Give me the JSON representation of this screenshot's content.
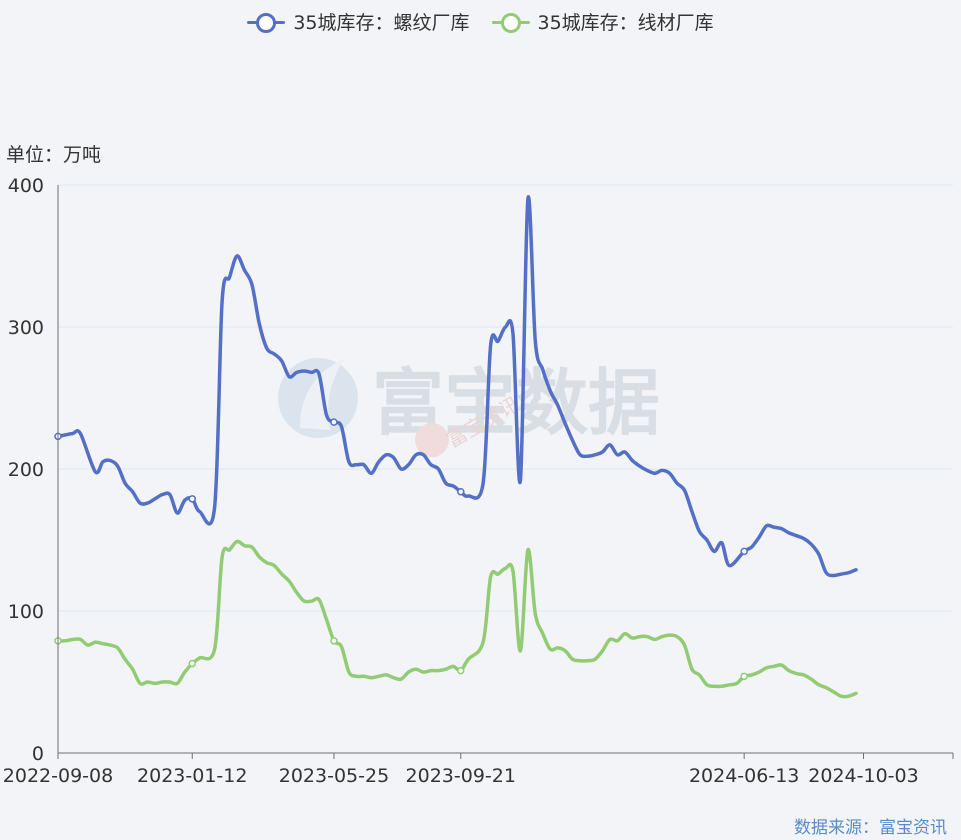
{
  "legend": {
    "rebar_label": "35城库存：螺纹厂库",
    "wire_label": "35城库存：线材厂库"
  },
  "unit_label": "单位：万吨",
  "source_label": "数据来源：富宝资讯",
  "watermark": {
    "main_text": "富宝数据",
    "sub_text": "富宝资讯"
  },
  "colors": {
    "rebar": "#5470c6",
    "wire": "#91cc75",
    "axis": "#6e7079",
    "grid": "#e0e6f1",
    "background": "#f2f4f7"
  },
  "chart_data": {
    "type": "line",
    "ylim": [
      0,
      400
    ],
    "yticks": [
      0,
      100,
      200,
      300,
      400
    ],
    "xlim": [
      "2022-09-08",
      "2024-12-26"
    ],
    "xticks": [
      "2022-09-08",
      "2023-01-12",
      "2023-05-25",
      "2023-09-21",
      "2024-06-13",
      "2024-10-03"
    ],
    "grid": true,
    "legend_position": "top-center",
    "series": [
      {
        "name": "35城库存：螺纹厂库",
        "color": "#5470c6",
        "points": [
          [
            "2022-09-08",
            223
          ],
          [
            "2022-09-15",
            224
          ],
          [
            "2022-09-22",
            225
          ],
          [
            "2022-09-29",
            225
          ],
          [
            "2022-10-13",
            198
          ],
          [
            "2022-10-20",
            205
          ],
          [
            "2022-10-27",
            206
          ],
          [
            "2022-11-03",
            202
          ],
          [
            "2022-11-10",
            190
          ],
          [
            "2022-11-17",
            184
          ],
          [
            "2022-11-24",
            176
          ],
          [
            "2022-12-01",
            176
          ],
          [
            "2022-12-08",
            179
          ],
          [
            "2022-12-15",
            182
          ],
          [
            "2022-12-22",
            182
          ],
          [
            "2022-12-29",
            169
          ],
          [
            "2023-01-05",
            178
          ],
          [
            "2023-01-12",
            179
          ],
          [
            "2023-01-19",
            170
          ],
          [
            "2023-02-02",
            173
          ],
          [
            "2023-02-09",
            318
          ],
          [
            "2023-02-16",
            335
          ],
          [
            "2023-02-23",
            350
          ],
          [
            "2023-03-02",
            340
          ],
          [
            "2023-03-09",
            330
          ],
          [
            "2023-03-16",
            302
          ],
          [
            "2023-03-23",
            285
          ],
          [
            "2023-03-30",
            281
          ],
          [
            "2023-04-06",
            276
          ],
          [
            "2023-04-13",
            265
          ],
          [
            "2023-04-20",
            268
          ],
          [
            "2023-04-27",
            269
          ],
          [
            "2023-05-04",
            268
          ],
          [
            "2023-05-11",
            267
          ],
          [
            "2023-05-18",
            238
          ],
          [
            "2023-05-25",
            233
          ],
          [
            "2023-06-01",
            230
          ],
          [
            "2023-06-08",
            205
          ],
          [
            "2023-06-15",
            203
          ],
          [
            "2023-06-22",
            203
          ],
          [
            "2023-06-29",
            197
          ],
          [
            "2023-07-06",
            205
          ],
          [
            "2023-07-13",
            210
          ],
          [
            "2023-07-20",
            208
          ],
          [
            "2023-07-27",
            200
          ],
          [
            "2023-08-03",
            203
          ],
          [
            "2023-08-10",
            210
          ],
          [
            "2023-08-17",
            210
          ],
          [
            "2023-08-24",
            203
          ],
          [
            "2023-08-31",
            200
          ],
          [
            "2023-09-07",
            190
          ],
          [
            "2023-09-14",
            188
          ],
          [
            "2023-09-21",
            184
          ],
          [
            "2023-09-28",
            181
          ],
          [
            "2023-10-12",
            190
          ],
          [
            "2023-10-19",
            287
          ],
          [
            "2023-10-26",
            290
          ],
          [
            "2023-11-02",
            300
          ],
          [
            "2023-11-09",
            295
          ],
          [
            "2023-11-16",
            192
          ],
          [
            "2023-11-23",
            390
          ],
          [
            "2023-11-30",
            290
          ],
          [
            "2023-12-07",
            270
          ],
          [
            "2023-12-14",
            255
          ],
          [
            "2023-12-21",
            245
          ],
          [
            "2023-12-28",
            232
          ],
          [
            "2024-01-04",
            220
          ],
          [
            "2024-01-11",
            210
          ],
          [
            "2024-01-18",
            209
          ],
          [
            "2024-01-25",
            210
          ],
          [
            "2024-02-01",
            212
          ],
          [
            "2024-02-08",
            217
          ],
          [
            "2024-02-15",
            210
          ],
          [
            "2024-02-22",
            212
          ],
          [
            "2024-02-29",
            206
          ],
          [
            "2024-03-07",
            202
          ],
          [
            "2024-03-14",
            199
          ],
          [
            "2024-03-21",
            197
          ],
          [
            "2024-03-28",
            199
          ],
          [
            "2024-04-04",
            197
          ],
          [
            "2024-04-11",
            190
          ],
          [
            "2024-04-18",
            185
          ],
          [
            "2024-04-25",
            170
          ],
          [
            "2024-05-02",
            156
          ],
          [
            "2024-05-09",
            150
          ],
          [
            "2024-05-16",
            142
          ],
          [
            "2024-05-23",
            148
          ],
          [
            "2024-05-30",
            132
          ],
          [
            "2024-06-13",
            142
          ],
          [
            "2024-06-20",
            145
          ],
          [
            "2024-06-27",
            152
          ],
          [
            "2024-07-04",
            160
          ],
          [
            "2024-07-11",
            159
          ],
          [
            "2024-07-18",
            158
          ],
          [
            "2024-07-25",
            155
          ],
          [
            "2024-08-01",
            153
          ],
          [
            "2024-08-08",
            151
          ],
          [
            "2024-08-15",
            147
          ],
          [
            "2024-08-22",
            140
          ],
          [
            "2024-08-29",
            127
          ],
          [
            "2024-09-05",
            125
          ],
          [
            "2024-09-12",
            126
          ],
          [
            "2024-09-19",
            127
          ],
          [
            "2024-09-26",
            129
          ]
        ]
      },
      {
        "name": "35城库存：线材厂库",
        "color": "#91cc75",
        "points": [
          [
            "2022-09-08",
            79
          ],
          [
            "2022-09-15",
            79
          ],
          [
            "2022-09-22",
            80
          ],
          [
            "2022-09-29",
            80
          ],
          [
            "2022-10-06",
            76
          ],
          [
            "2022-10-13",
            78
          ],
          [
            "2022-10-20",
            77
          ],
          [
            "2022-10-27",
            76
          ],
          [
            "2022-11-03",
            74
          ],
          [
            "2022-11-10",
            66
          ],
          [
            "2022-11-17",
            59
          ],
          [
            "2022-11-24",
            49
          ],
          [
            "2022-12-01",
            50
          ],
          [
            "2022-12-08",
            49
          ],
          [
            "2022-12-15",
            50
          ],
          [
            "2022-12-22",
            50
          ],
          [
            "2022-12-29",
            49
          ],
          [
            "2023-01-05",
            57
          ],
          [
            "2023-01-12",
            63
          ],
          [
            "2023-01-19",
            67
          ],
          [
            "2023-02-02",
            73
          ],
          [
            "2023-02-09",
            138
          ],
          [
            "2023-02-16",
            143
          ],
          [
            "2023-02-23",
            149
          ],
          [
            "2023-03-02",
            146
          ],
          [
            "2023-03-09",
            145
          ],
          [
            "2023-03-16",
            138
          ],
          [
            "2023-03-23",
            134
          ],
          [
            "2023-03-30",
            132
          ],
          [
            "2023-04-06",
            126
          ],
          [
            "2023-04-13",
            121
          ],
          [
            "2023-04-20",
            113
          ],
          [
            "2023-04-27",
            107
          ],
          [
            "2023-05-04",
            107
          ],
          [
            "2023-05-11",
            108
          ],
          [
            "2023-05-18",
            94
          ],
          [
            "2023-05-25",
            79
          ],
          [
            "2023-06-01",
            75
          ],
          [
            "2023-06-08",
            57
          ],
          [
            "2023-06-15",
            54
          ],
          [
            "2023-06-22",
            54
          ],
          [
            "2023-06-29",
            53
          ],
          [
            "2023-07-06",
            54
          ],
          [
            "2023-07-13",
            55
          ],
          [
            "2023-07-20",
            53
          ],
          [
            "2023-07-27",
            52
          ],
          [
            "2023-08-03",
            57
          ],
          [
            "2023-08-10",
            59
          ],
          [
            "2023-08-17",
            57
          ],
          [
            "2023-08-24",
            58
          ],
          [
            "2023-08-31",
            58
          ],
          [
            "2023-09-07",
            59
          ],
          [
            "2023-09-14",
            61
          ],
          [
            "2023-09-21",
            58
          ],
          [
            "2023-09-28",
            66
          ],
          [
            "2023-10-12",
            78
          ],
          [
            "2023-10-19",
            124
          ],
          [
            "2023-10-26",
            126
          ],
          [
            "2023-11-02",
            130
          ],
          [
            "2023-11-09",
            128
          ],
          [
            "2023-11-16",
            72
          ],
          [
            "2023-11-23",
            143
          ],
          [
            "2023-11-30",
            98
          ],
          [
            "2023-12-07",
            84
          ],
          [
            "2023-12-14",
            73
          ],
          [
            "2023-12-21",
            74
          ],
          [
            "2023-12-28",
            72
          ],
          [
            "2024-01-04",
            66
          ],
          [
            "2024-01-11",
            65
          ],
          [
            "2024-01-18",
            65
          ],
          [
            "2024-01-25",
            66
          ],
          [
            "2024-02-01",
            72
          ],
          [
            "2024-02-08",
            80
          ],
          [
            "2024-02-15",
            79
          ],
          [
            "2024-02-22",
            84
          ],
          [
            "2024-02-29",
            81
          ],
          [
            "2024-03-07",
            82
          ],
          [
            "2024-03-14",
            82
          ],
          [
            "2024-03-21",
            80
          ],
          [
            "2024-03-28",
            82
          ],
          [
            "2024-04-04",
            83
          ],
          [
            "2024-04-11",
            82
          ],
          [
            "2024-04-18",
            76
          ],
          [
            "2024-04-25",
            59
          ],
          [
            "2024-05-02",
            55
          ],
          [
            "2024-05-09",
            48
          ],
          [
            "2024-05-16",
            47
          ],
          [
            "2024-05-23",
            47
          ],
          [
            "2024-05-30",
            48
          ],
          [
            "2024-06-06",
            49
          ],
          [
            "2024-06-13",
            54
          ],
          [
            "2024-06-20",
            55
          ],
          [
            "2024-06-27",
            57
          ],
          [
            "2024-07-04",
            60
          ],
          [
            "2024-07-11",
            61
          ],
          [
            "2024-07-18",
            62
          ],
          [
            "2024-07-25",
            58
          ],
          [
            "2024-08-01",
            56
          ],
          [
            "2024-08-08",
            55
          ],
          [
            "2024-08-15",
            52
          ],
          [
            "2024-08-22",
            48
          ],
          [
            "2024-08-29",
            46
          ],
          [
            "2024-09-05",
            43
          ],
          [
            "2024-09-12",
            40
          ],
          [
            "2024-09-19",
            40
          ],
          [
            "2024-09-26",
            42
          ]
        ]
      }
    ]
  }
}
